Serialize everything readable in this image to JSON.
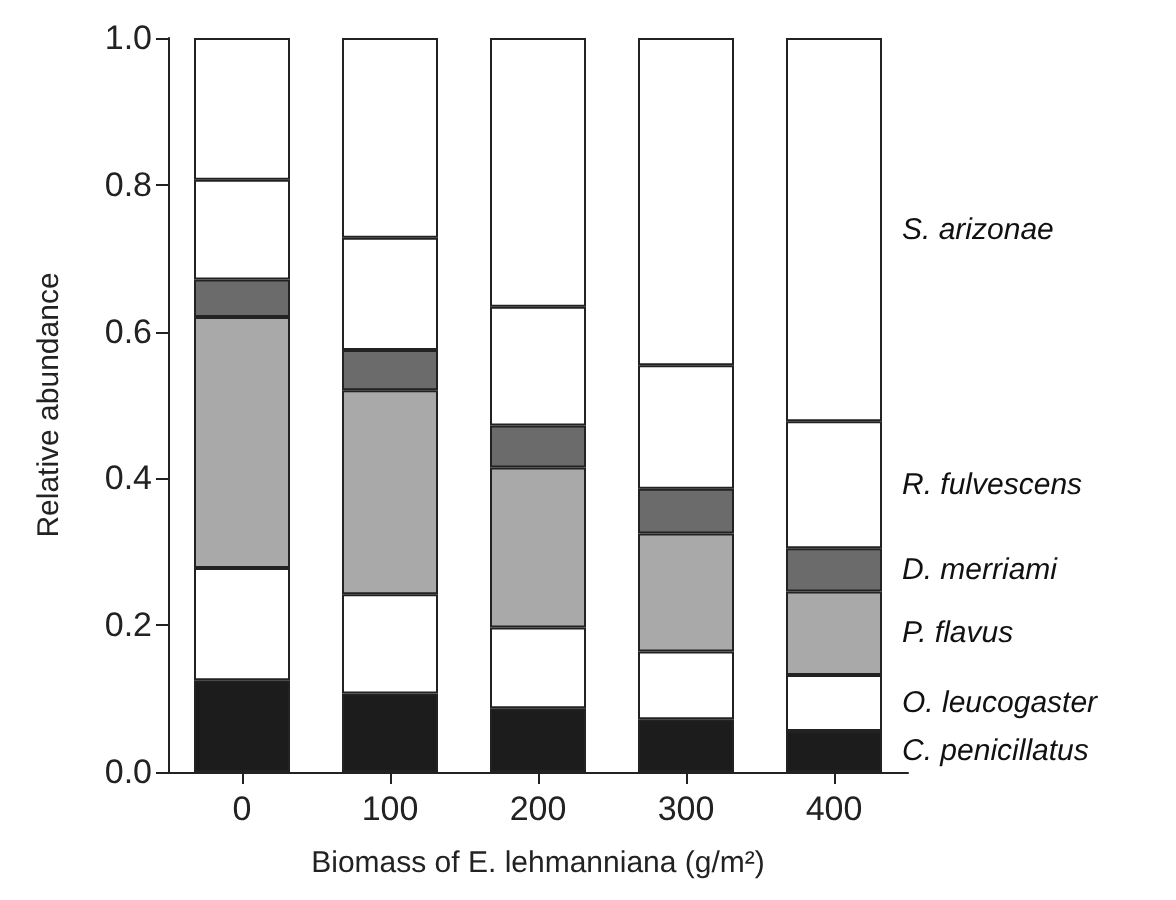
{
  "chart_data": {
    "type": "bar",
    "stacked": true,
    "xlabel": "Biomass of E. lehmanniana (g/m²)",
    "ylabel": "Relative abundance",
    "categories": [
      "0",
      "100",
      "200",
      "300",
      "400"
    ],
    "series": [
      {
        "name": "C. penicillatus",
        "color": "#1c1c1c",
        "values": [
          0.125,
          0.107,
          0.087,
          0.072,
          0.056
        ]
      },
      {
        "name": "O. leucogaster",
        "color": "#ffffff",
        "values": [
          0.153,
          0.135,
          0.11,
          0.092,
          0.076
        ]
      },
      {
        "name": "P. flavus",
        "color": "#a9a9a9",
        "values": [
          0.342,
          0.278,
          0.218,
          0.161,
          0.114
        ]
      },
      {
        "name": "D. merriami",
        "color": "#6b6b6b",
        "values": [
          0.051,
          0.055,
          0.057,
          0.061,
          0.059
        ]
      },
      {
        "name": "R. fulvescens",
        "color": "#ffffff",
        "values": [
          0.136,
          0.153,
          0.162,
          0.168,
          0.173
        ]
      },
      {
        "name": "S. arizonae",
        "color": "#ffffff",
        "values": [
          0.193,
          0.272,
          0.366,
          0.446,
          0.522
        ]
      }
    ],
    "ylim": [
      0,
      1
    ],
    "yticks": [
      {
        "value": 0,
        "label": "0.0"
      },
      0.2,
      0.4,
      0.6,
      0.8,
      {
        "value": 1,
        "label": "1.0"
      }
    ],
    "grid": false
  }
}
